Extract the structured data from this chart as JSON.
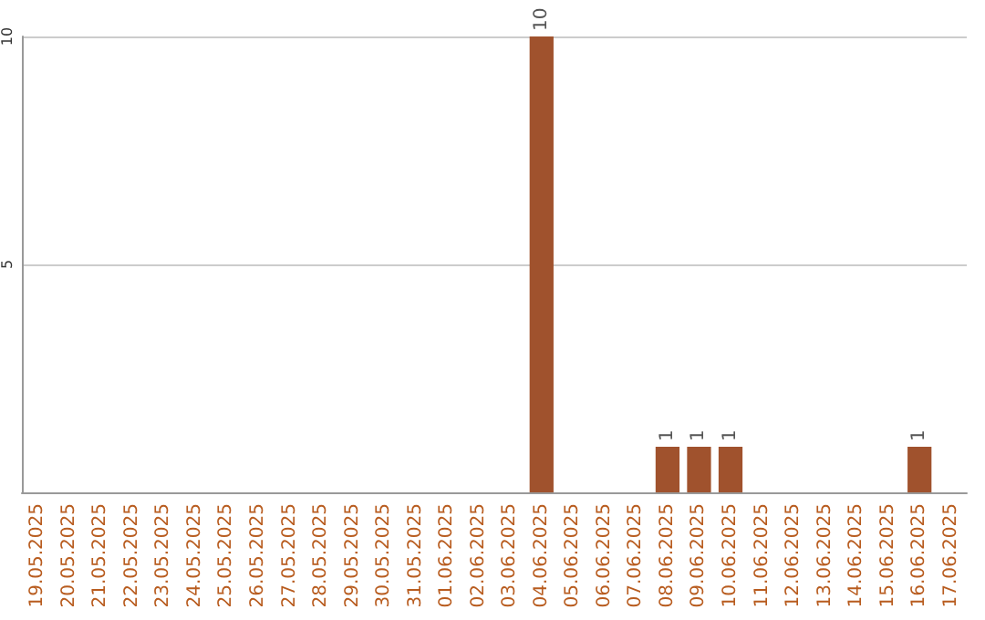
{
  "chart_data": {
    "type": "bar",
    "categories": [
      "19.05.2025",
      "20.05.2025",
      "21.05.2025",
      "22.05.2025",
      "23.05.2025",
      "24.05.2025",
      "25.05.2025",
      "26.05.2025",
      "27.05.2025",
      "28.05.2025",
      "29.05.2025",
      "30.05.2025",
      "31.05.2025",
      "01.06.2025",
      "02.06.2025",
      "03.06.2025",
      "04.06.2025",
      "05.06.2025",
      "06.06.2025",
      "07.06.2025",
      "08.06.2025",
      "09.06.2025",
      "10.06.2025",
      "11.06.2025",
      "12.06.2025",
      "13.06.2025",
      "14.06.2025",
      "15.06.2025",
      "16.06.2025",
      "17.06.2025"
    ],
    "values": [
      0,
      0,
      0,
      0,
      0,
      0,
      0,
      0,
      0,
      0,
      0,
      0,
      0,
      0,
      0,
      0,
      10,
      0,
      0,
      0,
      1,
      1,
      1,
      0,
      0,
      0,
      0,
      0,
      1,
      0
    ],
    "value_labels": [
      null,
      null,
      null,
      null,
      null,
      null,
      null,
      null,
      null,
      null,
      null,
      null,
      null,
      null,
      null,
      null,
      "10",
      null,
      null,
      null,
      "1",
      "1",
      "1",
      null,
      null,
      null,
      null,
      null,
      "1",
      null
    ],
    "color": "#a0522d",
    "ylim": [
      0,
      10
    ],
    "yticks": [
      {
        "value": 0,
        "label": null
      },
      5,
      10
    ],
    "grid": "y"
  }
}
